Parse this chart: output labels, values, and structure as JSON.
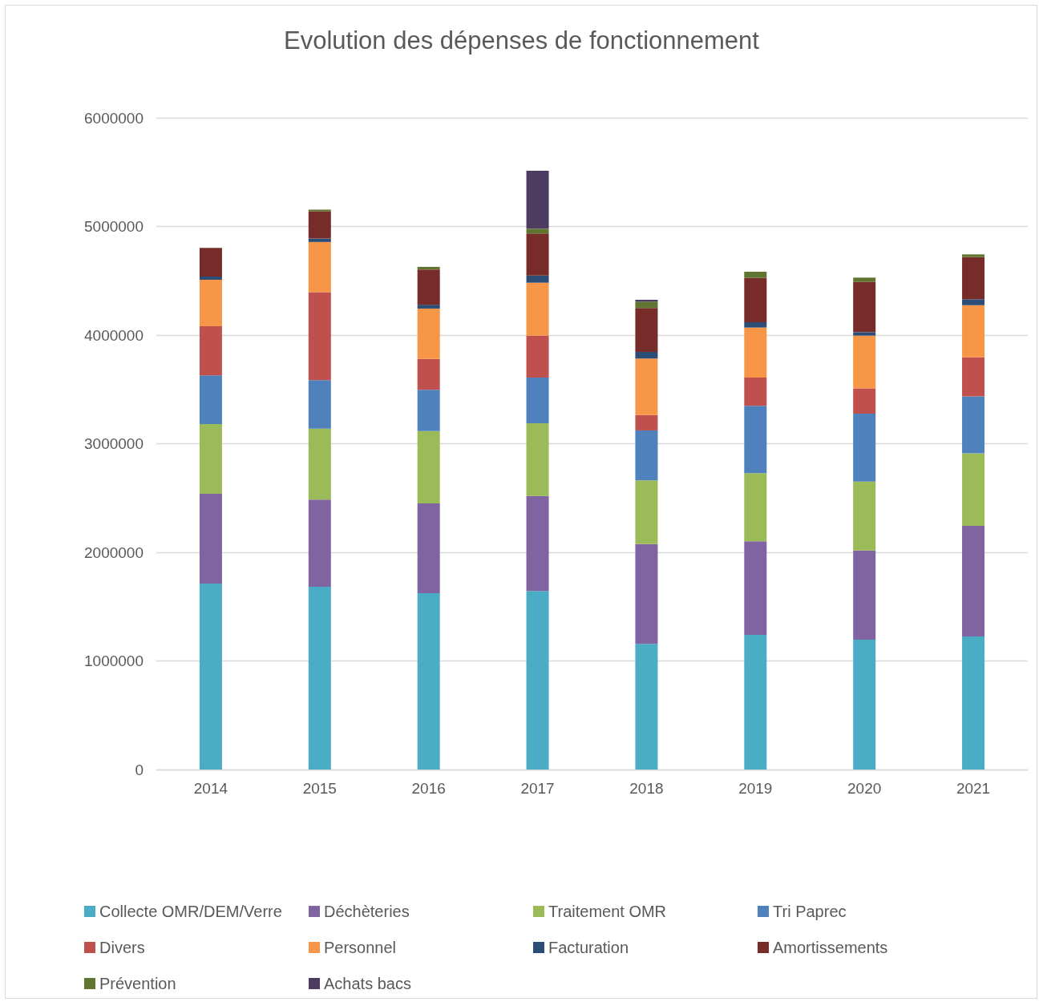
{
  "chart_data": {
    "type": "bar",
    "title": "Evolution des dépenses de fonctionnement",
    "categories": [
      "2014",
      "2015",
      "2016",
      "2017",
      "2018",
      "2019",
      "2020",
      "2021"
    ],
    "stacked": true,
    "series": [
      {
        "name": "Collecte OMR/DEM/Verre",
        "color": "#4bacc6",
        "values": [
          1712000,
          1683000,
          1624000,
          1644000,
          1156000,
          1240000,
          1196000,
          1225000
        ]
      },
      {
        "name": "Déchèteries",
        "color": "#8064a2",
        "values": [
          827000,
          802000,
          827000,
          875000,
          920000,
          861000,
          821000,
          1018000
        ]
      },
      {
        "name": "Traitement OMR",
        "color": "#9bbb59",
        "values": [
          642000,
          654000,
          666000,
          669000,
          586000,
          627000,
          635000,
          669000
        ]
      },
      {
        "name": "Tri Paprec",
        "color": "#4f81bd",
        "values": [
          448000,
          446000,
          379000,
          421000,
          460000,
          620000,
          624000,
          524000
        ]
      },
      {
        "name": "Divers",
        "color": "#c0504d",
        "values": [
          452000,
          809000,
          285000,
          386000,
          142000,
          261000,
          234000,
          359000
        ]
      },
      {
        "name": "Personnel",
        "color": "#f79646",
        "values": [
          428000,
          463000,
          463000,
          487000,
          520000,
          460000,
          485000,
          480000
        ]
      },
      {
        "name": "Facturation",
        "color": "#2c4d75",
        "values": [
          30000,
          32000,
          35000,
          66000,
          61000,
          49000,
          32000,
          55000
        ]
      },
      {
        "name": "Amortissements",
        "color": "#772c2a",
        "values": [
          263000,
          251000,
          325000,
          387000,
          404000,
          408000,
          463000,
          388000
        ]
      },
      {
        "name": "Prévention",
        "color": "#5f7530",
        "values": [
          null,
          15000,
          24000,
          44000,
          59000,
          57000,
          39000,
          25000
        ]
      },
      {
        "name": "Achats bacs",
        "color": "#4d3b62",
        "values": [
          null,
          null,
          null,
          534000,
          17000,
          null,
          null,
          null
        ]
      }
    ],
    "ylim": [
      0,
      6000000
    ],
    "yticks": [
      0,
      1000000,
      2000000,
      3000000,
      4000000,
      5000000,
      6000000
    ],
    "grid": "y",
    "legend": "bottom"
  }
}
